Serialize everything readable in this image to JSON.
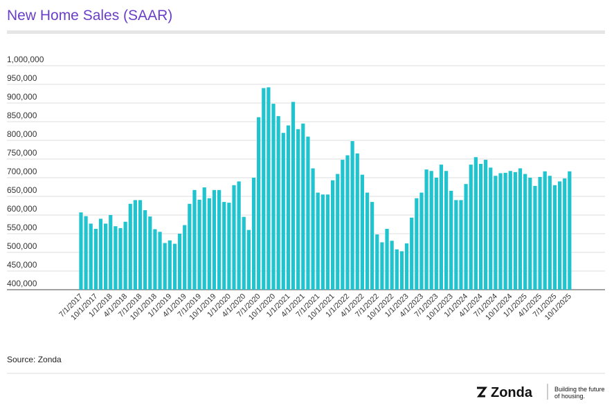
{
  "chart_data": {
    "type": "bar",
    "title": "New Home Sales (SAAR)",
    "categories": [
      "7/1/2017",
      null,
      null,
      "10/1/2017",
      null,
      null,
      "1/1/2018",
      null,
      null,
      "4/1/2018",
      null,
      null,
      "7/1/2018",
      null,
      null,
      "10/1/2018",
      null,
      null,
      "1/1/2019",
      null,
      null,
      "4/1/2019",
      null,
      null,
      "7/1/2019",
      null,
      null,
      "10/1/2019",
      null,
      null,
      "1/1/2020",
      null,
      null,
      "4/1/2020",
      null,
      null,
      "7/1/2020",
      null,
      null,
      "10/1/2020",
      null,
      null,
      "1/1/2021",
      null,
      null,
      "4/1/2021",
      null,
      null,
      "7/1/2021",
      null,
      null,
      "10/1/2021",
      null,
      null,
      "1/1/2022",
      null,
      null,
      "4/1/2022",
      null,
      null,
      "7/1/2022",
      null,
      null,
      "10/1/2022",
      null,
      null,
      "1/1/2023",
      null,
      null,
      "4/1/2023",
      null,
      null,
      "7/1/2023",
      null,
      null,
      "10/1/2023",
      null,
      null,
      "1/1/2024",
      null,
      null,
      "4/1/2024",
      null,
      null,
      "7/1/2024",
      null,
      null,
      "10/1/2024",
      null,
      null,
      "1/1/2025",
      null,
      null,
      "4/1/2025",
      null,
      null,
      "7/1/2025",
      null,
      null,
      "10/1/2025"
    ],
    "values": [
      607000,
      597000,
      577000,
      563000,
      590000,
      577000,
      600000,
      570000,
      565000,
      582000,
      630000,
      640000,
      640000,
      613000,
      596000,
      562000,
      555000,
      525000,
      532000,
      523000,
      550000,
      573000,
      630000,
      667000,
      641000,
      674000,
      645000,
      667000,
      667000,
      635000,
      633000,
      680000,
      690000,
      595000,
      560000,
      700000,
      862000,
      940000,
      942000,
      898000,
      865000,
      820000,
      840000,
      903000,
      830000,
      845000,
      810000,
      725000,
      660000,
      655000,
      655000,
      693000,
      710000,
      748000,
      760000,
      798000,
      765000,
      708000,
      660000,
      635000,
      548000,
      527000,
      563000,
      531000,
      508000,
      503000,
      524000,
      593000,
      645000,
      660000,
      722000,
      718000,
      700000,
      735000,
      718000,
      665000,
      640000,
      640000,
      683000,
      735000,
      755000,
      737000,
      748000,
      727000,
      705000,
      712000,
      713000,
      718000,
      715000,
      725000,
      710000,
      700000,
      678000,
      702000,
      717000,
      705000,
      680000,
      690000,
      698000,
      717000
    ],
    "color": "#1fc4cf",
    "ylim": [
      400000,
      1000000
    ],
    "yticks": [
      {
        "value": 400000,
        "label": "400,000"
      },
      {
        "value": 450000,
        "label": "450,000"
      },
      {
        "value": 500000,
        "label": "500,000"
      },
      {
        "value": 550000,
        "label": "550,000"
      },
      {
        "value": 600000,
        "label": "600,000"
      },
      {
        "value": 650000,
        "label": "650,000"
      },
      {
        "value": 700000,
        "label": "700,000"
      },
      {
        "value": 750000,
        "label": "750,000"
      },
      {
        "value": 800000,
        "label": "800,000"
      },
      {
        "value": 850000,
        "label": "850,000"
      },
      {
        "value": 900000,
        "label": "900,000"
      },
      {
        "value": 950000,
        "label": "950,000"
      },
      {
        "value": 1000000,
        "label": "1,000,000"
      }
    ],
    "grid": true,
    "source": "Source: Zonda"
  },
  "brand": {
    "name": "Zonda",
    "tagline": [
      "Building the future",
      "of housing."
    ]
  }
}
